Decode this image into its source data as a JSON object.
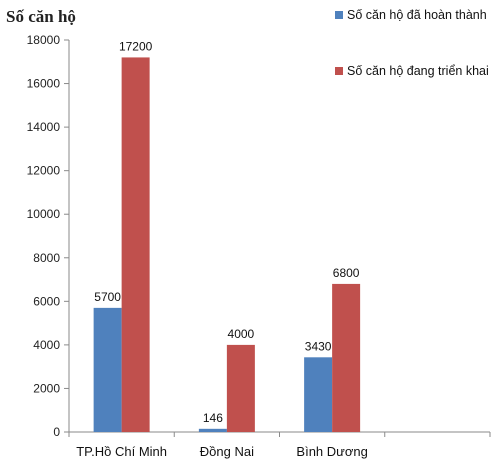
{
  "chart_data": {
    "type": "bar",
    "title": "",
    "ylabel": "Số căn hộ",
    "xlabel": "",
    "categories": [
      "TP.Hồ Chí Minh",
      "Đồng Nai",
      "Bình Dương"
    ],
    "series": [
      {
        "name": "Số căn hộ đã hoàn thành",
        "color": "#4F81BD",
        "values": [
          5700,
          146,
          3430
        ]
      },
      {
        "name": "Số căn hộ đang triển khai",
        "color": "#C0504D",
        "values": [
          17200,
          4000,
          6800
        ]
      }
    ],
    "ylim": [
      0,
      18000
    ],
    "yticks": [
      0,
      2000,
      4000,
      6000,
      8000,
      10000,
      12000,
      14000,
      16000,
      18000
    ],
    "grid": false,
    "legend_position": "top-right"
  }
}
